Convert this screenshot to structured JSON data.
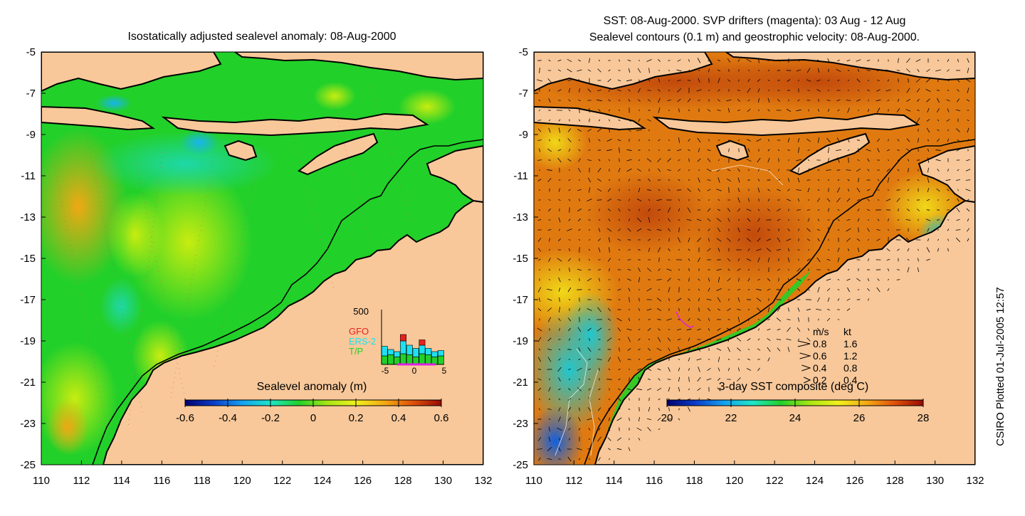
{
  "colors": {
    "land": "#f8c89a",
    "coast": "#000000",
    "ocean_left": "#22d02a",
    "ocean_right": "#e07a10"
  },
  "left_panel": {
    "title": "Isostatically adjusted sealevel anomaly: 08-Aug-2000",
    "colorbar_label": "Sealevel anomaly (m)",
    "colorbar_ticks": [
      "-0.6",
      "-0.4",
      "-0.2",
      "0",
      "0.2",
      "0.4",
      "0.6"
    ],
    "colorbar_range": [
      -0.6,
      0.6
    ],
    "colorbar_colors": [
      "#00006e",
      "#0a3cc8",
      "#14a0f0",
      "#1ee6c8",
      "#22d02a",
      "#a8e614",
      "#f0f01e",
      "#f5aa14",
      "#e0500a",
      "#960a00"
    ],
    "histogram": {
      "ymax_label": "500",
      "ymax": 500,
      "x_ticks": [
        "-5",
        "0",
        "5"
      ],
      "x_range": [
        -5,
        5
      ],
      "legend": [
        {
          "label": "GFO",
          "color": "#e8201c"
        },
        {
          "label": "ERS-2",
          "color": "#1ee0f0"
        },
        {
          "label": "T/P",
          "color": "#22d02a"
        }
      ],
      "bins": [
        {
          "x": -4.5,
          "tp": 80,
          "ers": 170,
          "gfo": 0
        },
        {
          "x": -3.5,
          "tp": 90,
          "ers": 140,
          "gfo": 0
        },
        {
          "x": -2.5,
          "tp": 70,
          "ers": 120,
          "gfo": 0
        },
        {
          "x": -1.5,
          "tp": 100,
          "ers": 220,
          "gfo": 60
        },
        {
          "x": -0.5,
          "tp": 90,
          "ers": 180,
          "gfo": 0
        },
        {
          "x": 0.5,
          "tp": 70,
          "ers": 150,
          "gfo": 0
        },
        {
          "x": 1.5,
          "tp": 100,
          "ers": 180,
          "gfo": 50
        },
        {
          "x": 2.5,
          "tp": 90,
          "ers": 150,
          "gfo": 0
        },
        {
          "x": 3.5,
          "tp": 70,
          "ers": 120,
          "gfo": 0
        },
        {
          "x": 4.5,
          "tp": 80,
          "ers": 130,
          "gfo": 0
        }
      ]
    }
  },
  "right_panel": {
    "title_line1": "SST: 08-Aug-2000. SVP drifters (magenta): 03 Aug - 12 Aug",
    "title_line2": "Sealevel contours (0.1 m) and geostrophic velocity: 08-Aug-2000.",
    "colorbar_label": "3-day SST composite (deg C)",
    "colorbar_ticks": [
      "20",
      "22",
      "24",
      "26",
      "28"
    ],
    "colorbar_range": [
      20,
      28
    ],
    "colorbar_colors": [
      "#00006e",
      "#0a3cc8",
      "#14a0f0",
      "#1ee6c8",
      "#22d02a",
      "#a8e614",
      "#f0f01e",
      "#f5aa14",
      "#e0500a",
      "#960a00"
    ],
    "velocity_legend": {
      "header_ms": "m/s",
      "header_kt": "kt",
      "rows": [
        {
          "ms": "0.8",
          "kt": "1.6",
          "speed": 0.8
        },
        {
          "ms": "0.6",
          "kt": "1.2",
          "speed": 0.6
        },
        {
          "ms": "0.4",
          "kt": "0.8",
          "speed": 0.4
        },
        {
          "ms": "0.2",
          "kt": "0.4",
          "speed": 0.2
        }
      ]
    }
  },
  "axes": {
    "lon_range": [
      110,
      132
    ],
    "lat_range": [
      -25,
      -5
    ],
    "lon_ticks": [
      "110",
      "112",
      "114",
      "116",
      "118",
      "120",
      "122",
      "124",
      "126",
      "128",
      "130",
      "132"
    ],
    "lat_ticks": [
      "-5",
      "-7",
      "-9",
      "-11",
      "-13",
      "-15",
      "-17",
      "-19",
      "-21",
      "-23",
      "-25"
    ]
  },
  "credit": "CSIRO Plotted 01-Jul-2005 12:57"
}
